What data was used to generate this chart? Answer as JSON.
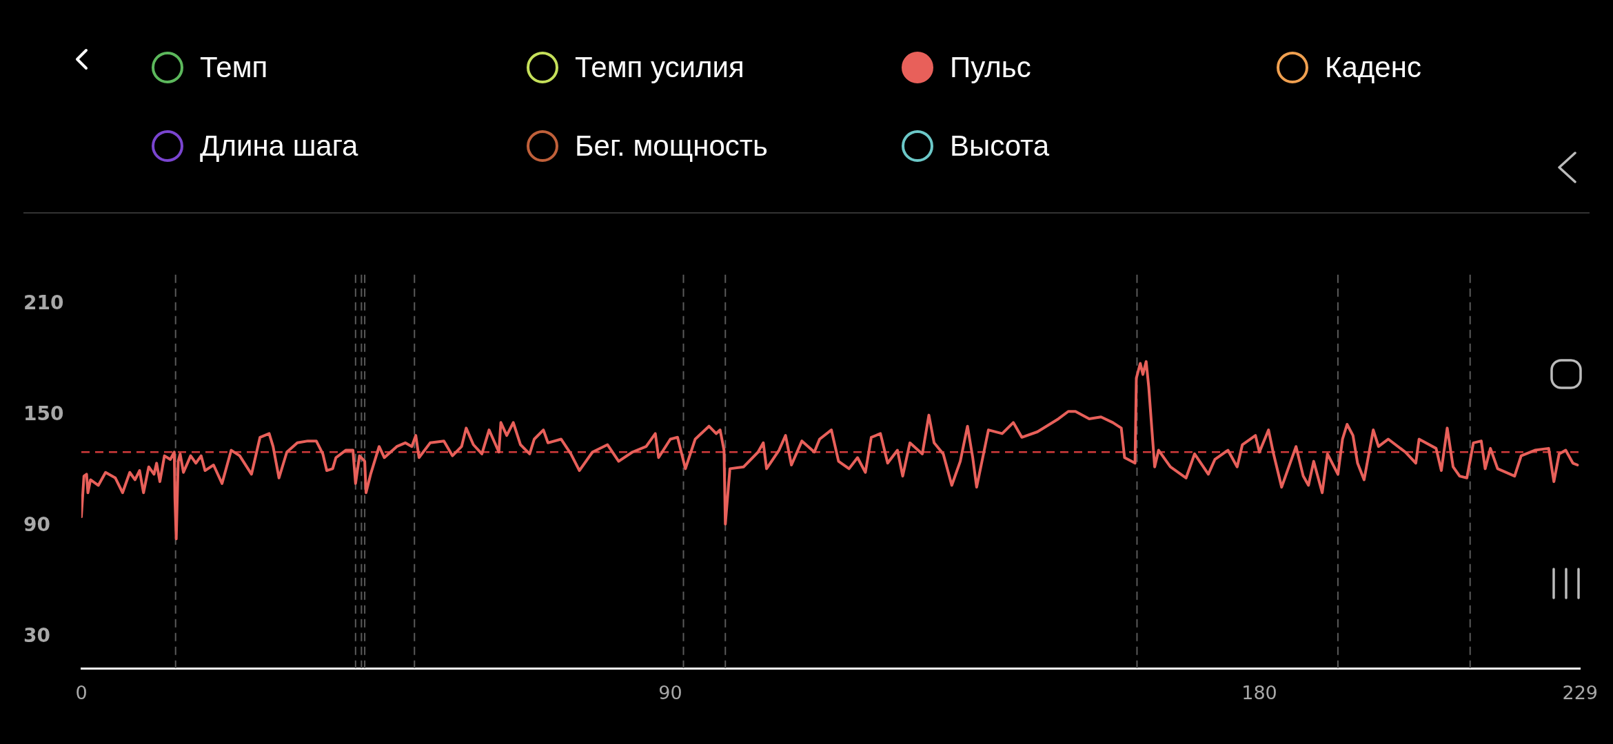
{
  "chart_data": {
    "type": "line",
    "xlim": [
      0,
      229
    ],
    "ylim": [
      13,
      226
    ],
    "xticks": [
      0,
      90,
      180,
      229
    ],
    "yticks": [
      30,
      90,
      150,
      210
    ],
    "grid": false,
    "legend": "top",
    "marker": "none",
    "line_style": "solid",
    "series": [
      {
        "name": "Темп",
        "color": "#5cb85c"
      },
      {
        "name": "Темп усилия",
        "color": "#c5e05a"
      },
      {
        "name": "Пульс",
        "color": "#e8605a",
        "x": [
          0,
          0.4,
          0.8,
          1.0,
          1.4,
          2.6,
          3.7,
          5.2,
          6.3,
          7.4,
          8.2,
          8.9,
          9.5,
          10.3,
          11.1,
          11.5,
          12.0,
          12.7,
          13.6,
          14.2,
          14.3,
          14.5,
          14.8,
          15.1,
          15.6,
          16.7,
          17.5,
          18.3,
          18.9,
          20.2,
          21.5,
          22.9,
          24.2,
          26.0,
          27.3,
          28.7,
          29.3,
          30.2,
          31.4,
          33.0,
          34.6,
          35.9,
          36.9,
          37.5,
          38.4,
          38.9,
          40.4,
          41.5,
          41.9,
          42.5,
          43.3,
          43.5,
          44.2,
          45.5,
          46.3,
          48.2,
          49.5,
          50.5,
          51.1,
          51.6,
          53.3,
          55.4,
          56.7,
          58.1,
          58.8,
          59.9,
          61.2,
          62.3,
          63.8,
          64.1,
          65.0,
          66.0,
          67.1,
          68.5,
          69.2,
          70.6,
          71.3,
          73.3,
          74.8,
          76.1,
          78.1,
          80.4,
          82.1,
          84.2,
          86.3,
          87.7,
          88.2,
          90.0,
          91.1,
          92.3,
          93.8,
          95.9,
          97.0,
          97.6,
          98.2,
          98.4,
          99.1,
          101.2,
          103.4,
          104.2,
          104.7,
          106.6,
          107.6,
          108.5,
          110.1,
          112.0,
          112.8,
          114.6,
          115.7,
          117.3,
          118.6,
          119.8,
          120.7,
          122.1,
          123.2,
          124.7,
          125.5,
          126.6,
          128.5,
          129.5,
          130.3,
          131.7,
          133.0,
          134.3,
          135.4,
          136.2,
          136.8,
          138.6,
          140.7,
          142.4,
          143.7,
          146.1,
          149.3,
          150.8,
          151.9,
          154.0,
          155.8,
          157.6,
          158.9,
          159.4,
          161.0,
          161.2,
          161.8,
          162.2,
          162.7,
          163.1,
          163.6,
          164.0,
          164.6,
          166.4,
          168.8,
          170.1,
          172.2,
          173.2,
          175.2,
          176.6,
          177.4,
          179.4,
          180.0,
          181.4,
          182.1,
          183.4,
          184.1,
          185.6,
          186.7,
          187.5,
          188.3,
          189.6,
          190.4,
          192.0,
          192.7,
          193.4,
          194.3,
          195.0,
          196.0,
          197.4,
          198.2,
          199.7,
          202.3,
          203.9,
          204.4,
          207.0,
          207.8,
          208.7,
          209.6,
          210.6,
          211.7,
          212.7,
          213.9,
          214.5,
          215.3,
          216.4,
          219.0,
          220.0,
          222.1,
          224.2,
          225.0,
          225.8,
          226.8,
          227.9,
          228.6
        ],
        "values": [
          95,
          117,
          118,
          108,
          115,
          112,
          119,
          116,
          108,
          119,
          115,
          120,
          108,
          122,
          118,
          124,
          114,
          128,
          126,
          130,
          105,
          83,
          125,
          129,
          119,
          128,
          124,
          128,
          120,
          123,
          113,
          131,
          128,
          118,
          138,
          140,
          133,
          116,
          130,
          135,
          136,
          136,
          129,
          120,
          121,
          127,
          131,
          131,
          113,
          128,
          125,
          108,
          118,
          133,
          127,
          133,
          135,
          133,
          139,
          127,
          135,
          136,
          128,
          133,
          143,
          134,
          129,
          142,
          130,
          146,
          139,
          146,
          134,
          129,
          137,
          142,
          135,
          137,
          129,
          120,
          130,
          134,
          125,
          130,
          133,
          140,
          127,
          137,
          138,
          121,
          137,
          144,
          140,
          142,
          131,
          91,
          121,
          122,
          130,
          135,
          121,
          131,
          139,
          123,
          136,
          130,
          137,
          142,
          125,
          121,
          127,
          119,
          138,
          140,
          124,
          131,
          117,
          135,
          129,
          150,
          135,
          129,
          112,
          125,
          144,
          127,
          111,
          142,
          140,
          146,
          138,
          141,
          148,
          152,
          152,
          148,
          149,
          146,
          143,
          127,
          124,
          170,
          178,
          172,
          179,
          165,
          141,
          122,
          131,
          122,
          116,
          129,
          118,
          126,
          131,
          122,
          134,
          139,
          130,
          142,
          130,
          111,
          118,
          133,
          117,
          112,
          125,
          108,
          129,
          118,
          137,
          145,
          139,
          124,
          115,
          142,
          133,
          137,
          130,
          124,
          137,
          132,
          120,
          143,
          122,
          117,
          116,
          135,
          136,
          121,
          132,
          121,
          117,
          128,
          131,
          132,
          114,
          129,
          131,
          124,
          123
        ]
      },
      {
        "name": "Каденс",
        "color": "#f0a050"
      },
      {
        "name": "Длина шага",
        "color": "#7a45d0"
      },
      {
        "name": "Бег. мощность",
        "color": "#c0603a"
      },
      {
        "name": "Высота",
        "color": "#6cc8c8"
      }
    ],
    "ref_lines": [
      {
        "axis": "y",
        "value": 130,
        "color": "#d23a3a",
        "line_style": "dashed"
      },
      {
        "axis": "x",
        "value": 14.4,
        "color": "#5a5a5a",
        "line_style": "dashed"
      },
      {
        "axis": "x",
        "value": 41.9,
        "color": "#5a5a5a",
        "line_style": "dashed"
      },
      {
        "axis": "x",
        "value": 42.8,
        "color": "#5a5a5a",
        "line_style": "dashed"
      },
      {
        "axis": "x",
        "value": 43.3,
        "color": "#5a5a5a",
        "line_style": "dashed"
      },
      {
        "axis": "x",
        "value": 50.9,
        "color": "#5a5a5a",
        "line_style": "dashed"
      },
      {
        "axis": "x",
        "value": 92,
        "color": "#5a5a5a",
        "line_style": "dashed"
      },
      {
        "axis": "x",
        "value": 98.4,
        "color": "#5a5a5a",
        "line_style": "dashed"
      },
      {
        "axis": "x",
        "value": 161.3,
        "color": "#5a5a5a",
        "line_style": "dashed"
      },
      {
        "axis": "x",
        "value": 192,
        "color": "#5a5a5a",
        "line_style": "dashed"
      },
      {
        "axis": "x",
        "value": 212.2,
        "color": "#5a5a5a",
        "line_style": "dashed"
      }
    ]
  }
}
